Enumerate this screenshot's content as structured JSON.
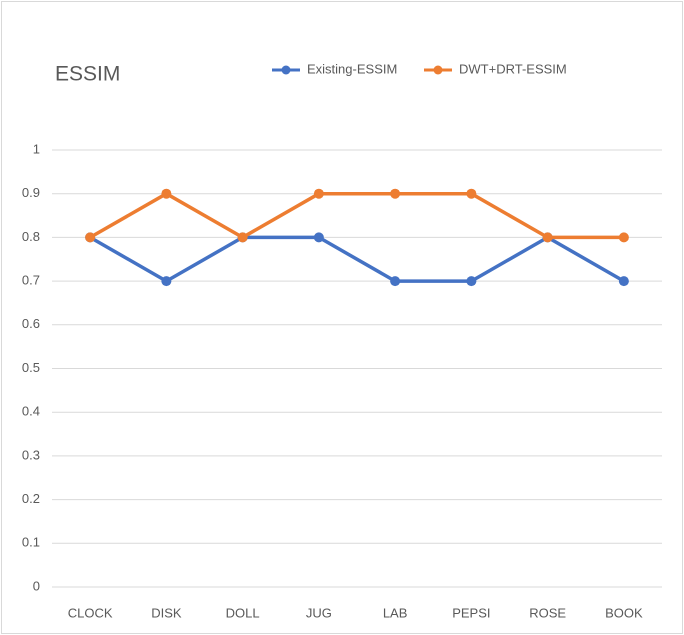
{
  "chart_data": {
    "type": "line",
    "title": "ESSIM",
    "categories": [
      "CLOCK",
      "DISK",
      "DOLL",
      "JUG",
      "LAB",
      "PEPSI",
      "ROSE",
      "BOOK"
    ],
    "series": [
      {
        "name": "Existing-ESSIM",
        "color": "#4472c4",
        "values": [
          0.8,
          0.7,
          0.8,
          0.8,
          0.7,
          0.7,
          0.8,
          0.7
        ]
      },
      {
        "name": "DWT+DRT-ESSIM",
        "color": "#ed7d31",
        "values": [
          0.8,
          0.9,
          0.8,
          0.9,
          0.9,
          0.9,
          0.8,
          0.8
        ]
      }
    ],
    "ylim": [
      0,
      1
    ],
    "yticks": [
      0,
      0.1,
      0.2,
      0.3,
      0.4,
      0.5,
      0.6,
      0.7,
      0.8,
      0.9,
      1
    ],
    "grid": true,
    "legend": "top"
  }
}
